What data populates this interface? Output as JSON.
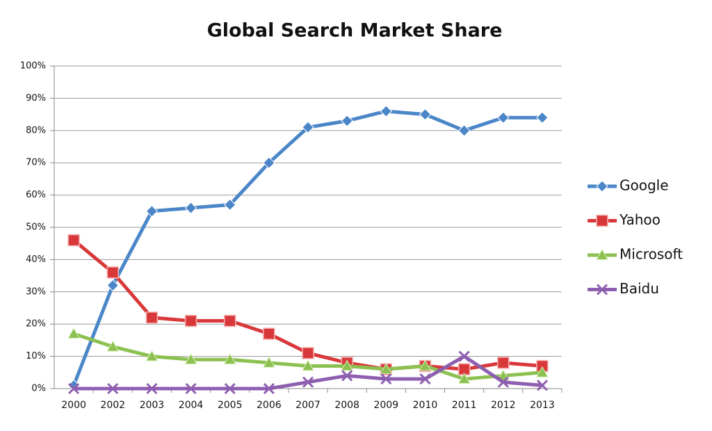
{
  "chart_data": {
    "type": "line",
    "title": "Global Search Market Share",
    "categories": [
      "2000",
      "2002",
      "2003",
      "2004",
      "2005",
      "2006",
      "2007",
      "2008",
      "2009",
      "2010",
      "2011",
      "2012",
      "2013"
    ],
    "series": [
      {
        "name": "Google",
        "color": "#4a86c8",
        "marker": "diamond",
        "values": [
          1,
          32,
          55,
          56,
          57,
          70,
          81,
          83,
          86,
          85,
          80,
          84,
          84
        ]
      },
      {
        "name": "Yahoo",
        "color": "#d9383a",
        "marker": "square",
        "values": [
          46,
          36,
          22,
          21,
          21,
          17,
          11,
          8,
          6,
          7,
          6,
          8,
          7
        ]
      },
      {
        "name": "Microsoft",
        "color": "#8cc152",
        "marker": "triangle",
        "values": [
          17,
          13,
          10,
          9,
          9,
          8,
          7,
          7,
          6,
          7,
          3,
          4,
          5
        ]
      },
      {
        "name": "Baidu",
        "color": "#8e5fb0",
        "marker": "x",
        "values": [
          0,
          0,
          0,
          0,
          0,
          0,
          2,
          4,
          3,
          3,
          10,
          2,
          1
        ]
      }
    ],
    "ylim": [
      0,
      100
    ],
    "yticks": [
      {
        "value": 0,
        "label": "0%"
      },
      {
        "value": 10,
        "label": "10%"
      },
      {
        "value": 20,
        "label": "20%"
      },
      {
        "value": 30,
        "label": "30%"
      },
      {
        "value": 40,
        "label": "40%"
      },
      {
        "value": 50,
        "label": "50%"
      },
      {
        "value": 60,
        "label": "60%"
      },
      {
        "value": 70,
        "label": "70%"
      },
      {
        "value": 80,
        "label": "80%"
      },
      {
        "value": 90,
        "label": "90%"
      },
      {
        "value": 100,
        "label": "100%"
      }
    ],
    "grid": true,
    "legend": "right"
  }
}
